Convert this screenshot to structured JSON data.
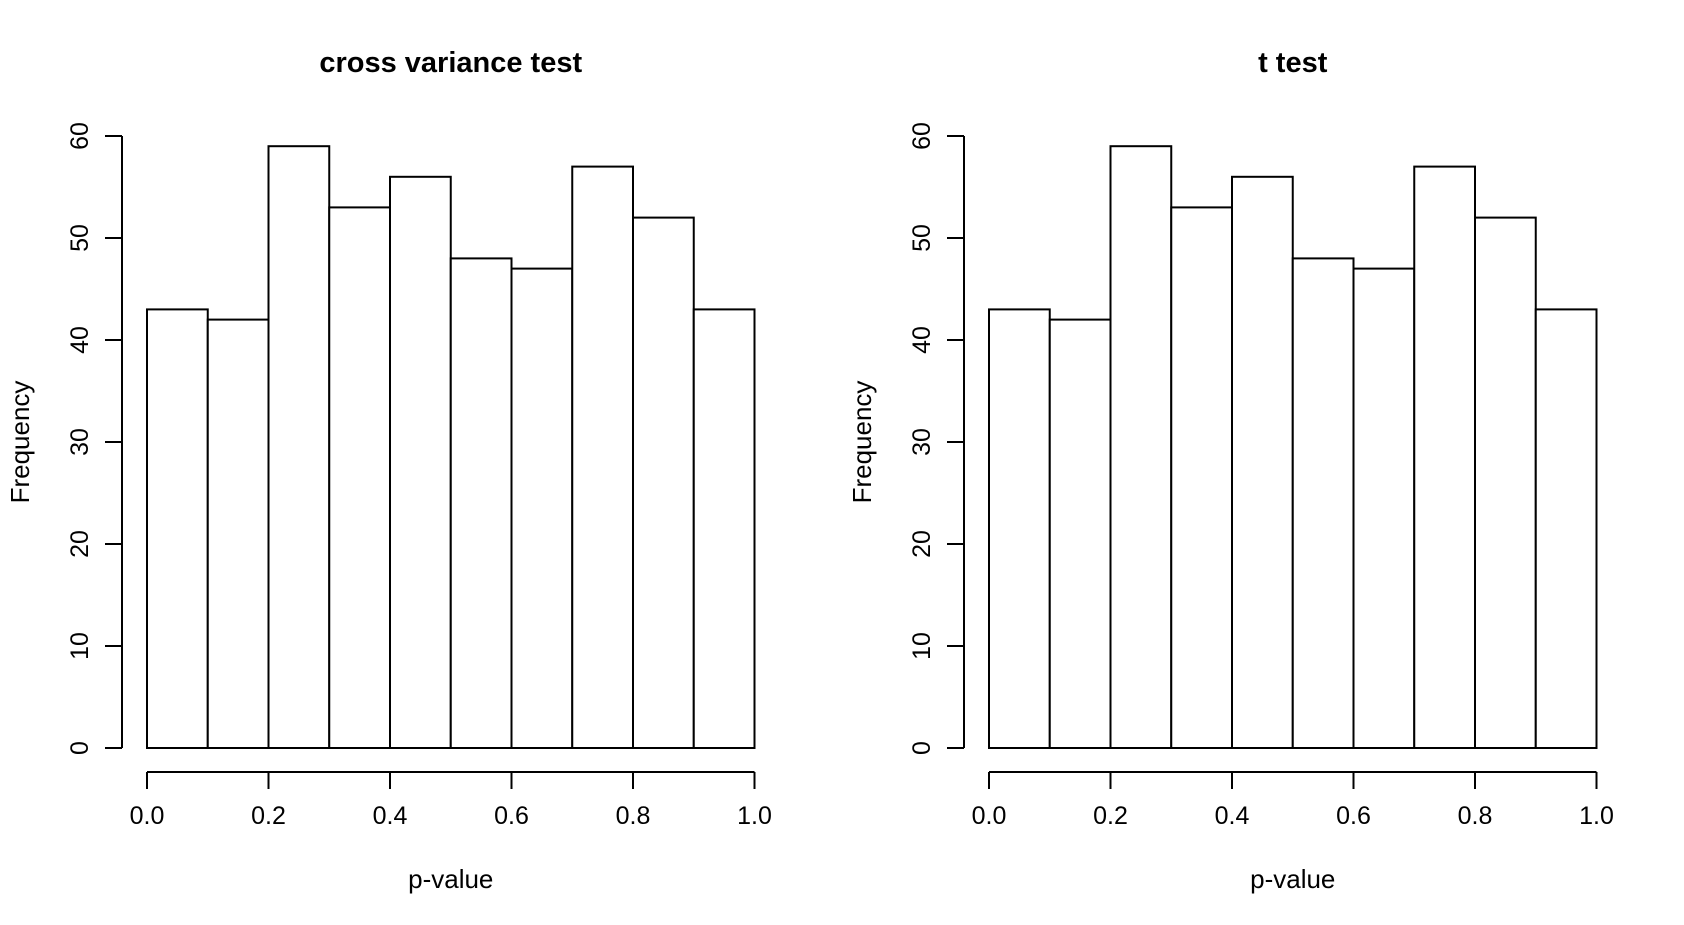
{
  "figure": {
    "background": "#ffffff",
    "foreground": "#000000"
  },
  "chart_data": [
    {
      "type": "bar",
      "subtype": "histogram",
      "title": "cross variance test",
      "xlabel": "p-value",
      "ylabel": "Frequency",
      "bin_start": 0.0,
      "bin_width": 0.1,
      "categories": [
        "0.0-0.1",
        "0.1-0.2",
        "0.2-0.3",
        "0.3-0.4",
        "0.4-0.5",
        "0.5-0.6",
        "0.6-0.7",
        "0.7-0.8",
        "0.8-0.9",
        "0.9-1.0"
      ],
      "values": [
        43,
        42,
        59,
        53,
        56,
        48,
        47,
        57,
        52,
        43
      ],
      "x_tick_labels": [
        "0.0",
        "0.2",
        "0.4",
        "0.6",
        "0.8",
        "1.0"
      ],
      "y_tick_labels": [
        "0",
        "10",
        "20",
        "30",
        "40",
        "50",
        "60"
      ],
      "xlim": [
        0.0,
        1.0
      ],
      "ylim": [
        0,
        60
      ],
      "grid": "off",
      "legend": "none",
      "bar_fill": "#ffffff",
      "bar_stroke": "#000000",
      "text_color": "#000000"
    },
    {
      "type": "bar",
      "subtype": "histogram",
      "title": "t test",
      "xlabel": "p-value",
      "ylabel": "Frequency",
      "bin_start": 0.0,
      "bin_width": 0.1,
      "categories": [
        "0.0-0.1",
        "0.1-0.2",
        "0.2-0.3",
        "0.3-0.4",
        "0.4-0.5",
        "0.5-0.6",
        "0.6-0.7",
        "0.7-0.8",
        "0.8-0.9",
        "0.9-1.0"
      ],
      "values": [
        43,
        42,
        59,
        53,
        56,
        48,
        47,
        57,
        52,
        43
      ],
      "x_tick_labels": [
        "0.0",
        "0.2",
        "0.4",
        "0.6",
        "0.8",
        "1.0"
      ],
      "y_tick_labels": [
        "0",
        "10",
        "20",
        "30",
        "40",
        "50",
        "60"
      ],
      "xlim": [
        0.0,
        1.0
      ],
      "ylim": [
        0,
        60
      ],
      "grid": "off",
      "legend": "none",
      "bar_fill": "#ffffff",
      "bar_stroke": "#000000",
      "text_color": "#000000"
    }
  ]
}
